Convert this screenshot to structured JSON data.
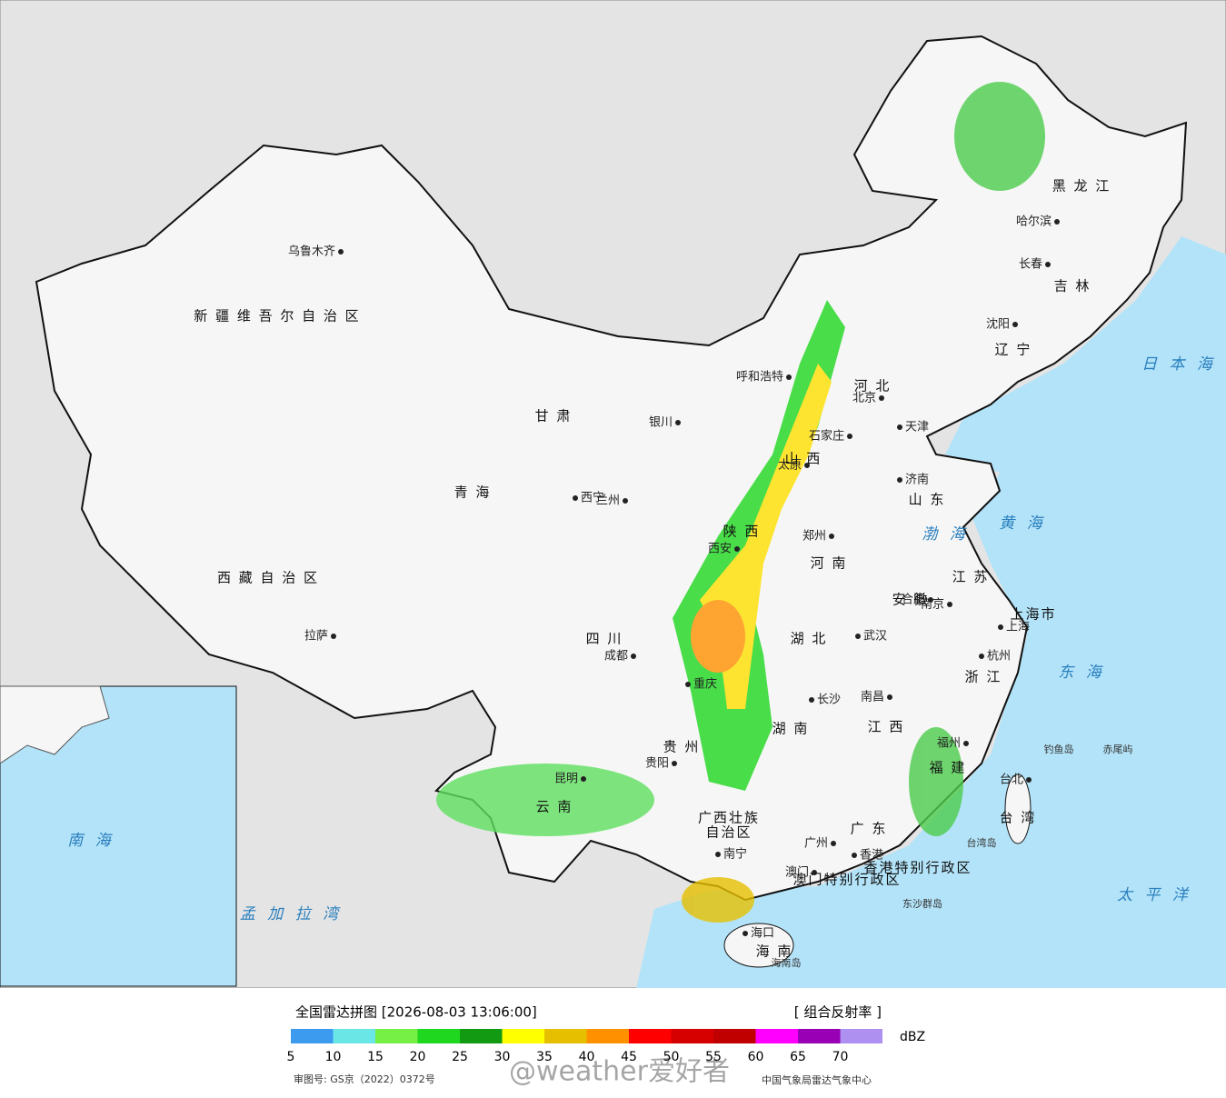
{
  "map": {
    "cities": [
      "乌鲁木齐",
      "拉萨",
      "西宁",
      "兰州",
      "银川",
      "呼和浩特",
      "北京",
      "天津",
      "石家庄",
      "太原",
      "济南",
      "郑州",
      "西安",
      "合肥",
      "南京",
      "上海",
      "杭州",
      "武汉",
      "长沙",
      "南昌",
      "福州",
      "台北",
      "成都",
      "重庆",
      "贵阳",
      "昆明",
      "南宁",
      "广州",
      "香港",
      "澳门",
      "海口",
      "哈尔滨",
      "长春",
      "沈阳"
    ],
    "regions": [
      "新 疆 维 吾 尔 自 治 区",
      "西 藏 自 治 区",
      "青 海",
      "甘 肃",
      "四 川",
      "云 南",
      "广西壮族",
      "自治区",
      "湖 南",
      "湖 北",
      "河 南",
      "山 东",
      "安 徽",
      "江 苏",
      "浙 江",
      "江 西",
      "福 建",
      "黑 龙 江",
      "吉 林",
      "辽 宁",
      "河 北",
      "山 西",
      "陕 西",
      "贵 州",
      "广 东",
      "台 湾",
      "上海市",
      "香港特别行政区",
      "澳门特别行政区",
      "海 南"
    ],
    "seas": [
      "日 本 海",
      "渤 海",
      "黄 海",
      "东 海",
      "太 平 洋",
      "南 海",
      "孟 加 拉 湾"
    ],
    "islands": [
      "钓鱼岛",
      "赤尾屿",
      "台湾岛",
      "海南岛",
      "东沙群岛"
    ]
  },
  "legend": {
    "title": "全国雷达拼图 [2026-08-03 13:06:00]",
    "product": "[ 组合反射率 ]",
    "unit": "dBZ",
    "ticks": [
      5,
      10,
      15,
      20,
      25,
      30,
      35,
      40,
      45,
      50,
      55,
      60,
      65,
      70
    ],
    "colors": [
      "#3d9bef",
      "#6be6e6",
      "#77f046",
      "#1fd71f",
      "#129b12",
      "#ffff00",
      "#e6c000",
      "#ff9000",
      "#ff0000",
      "#d60000",
      "#c00000",
      "#ff00ff",
      "#9900b5",
      "#ad90f0"
    ],
    "approval": "审图号: GS京（2022）0372号",
    "source": "中国气象局雷达气象中心",
    "watermark": "@weather爱好者"
  }
}
